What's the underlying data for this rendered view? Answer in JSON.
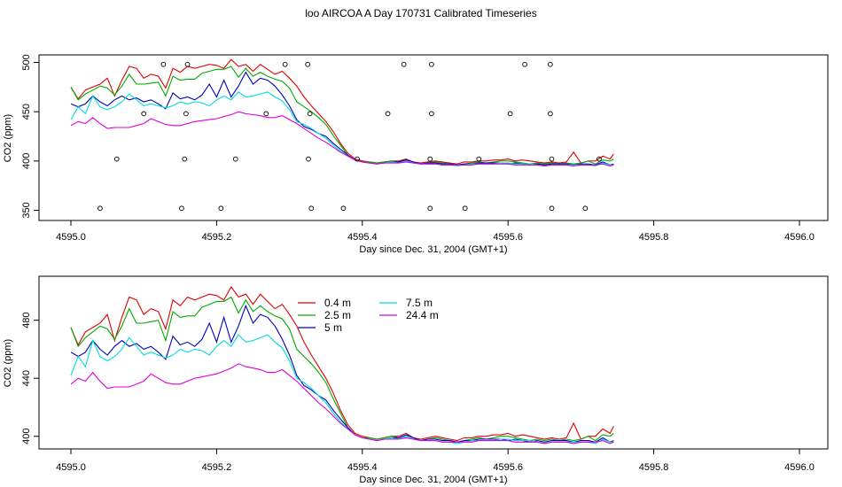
{
  "title": "loo AIRCOA A  Day 170731  Calibrated Timeseries",
  "series_names": [
    "0.4 m",
    "2.5 m",
    "5 m",
    "7.5 m",
    "24.4 m"
  ],
  "series_colors": [
    "#dd0000",
    "#00aa00",
    "#0000bb",
    "#00dddd",
    "#dd00dd"
  ],
  "t": [
    4595.0,
    4595.01,
    4595.02,
    4595.03,
    4595.04,
    4595.05,
    4595.06,
    4595.07,
    4595.08,
    4595.09,
    4595.1,
    4595.11,
    4595.12,
    4595.13,
    4595.14,
    4595.15,
    4595.16,
    4595.17,
    4595.18,
    4595.19,
    4595.2,
    4595.21,
    4595.22,
    4595.23,
    4595.24,
    4595.25,
    4595.26,
    4595.27,
    4595.28,
    4595.29,
    4595.3,
    4595.31,
    4595.32,
    4595.33,
    4595.34,
    4595.35,
    4595.36,
    4595.37,
    4595.38,
    4595.39,
    4595.4,
    4595.41,
    4595.42,
    4595.43,
    4595.44,
    4595.45,
    4595.46,
    4595.47,
    4595.48,
    4595.49,
    4595.5,
    4595.51,
    4595.52,
    4595.53,
    4595.54,
    4595.55,
    4595.56,
    4595.57,
    4595.58,
    4595.59,
    4595.6,
    4595.61,
    4595.62,
    4595.63,
    4595.64,
    4595.65,
    4595.66,
    4595.67,
    4595.68,
    4595.69,
    4595.7,
    4595.71,
    4595.72,
    4595.73,
    4595.74,
    4595.745
  ],
  "values": [
    [
      475,
      463,
      472,
      475,
      478,
      484,
      466,
      482,
      496,
      494,
      484,
      488,
      486,
      474,
      494,
      490,
      496,
      494,
      496,
      498,
      497,
      494,
      503,
      496,
      498,
      491,
      498,
      493,
      488,
      491,
      484,
      476,
      465,
      456,
      448,
      440,
      430,
      418,
      408,
      402,
      400,
      399,
      398,
      399,
      400,
      400,
      402,
      399,
      398,
      399,
      400,
      399,
      398,
      397,
      399,
      399,
      400,
      400,
      401,
      401,
      402,
      400,
      401,
      400,
      399,
      398,
      399,
      398,
      399,
      409,
      398,
      400,
      400,
      405,
      402,
      407
    ],
    [
      475,
      462,
      468,
      472,
      476,
      474,
      467,
      476,
      488,
      478,
      478,
      479,
      480,
      466,
      486,
      482,
      483,
      483,
      489,
      491,
      493,
      493,
      496,
      485,
      494,
      486,
      490,
      486,
      483,
      481,
      474,
      460,
      455,
      450,
      444,
      437,
      426,
      416,
      406,
      401,
      399,
      399,
      398,
      399,
      400,
      399,
      401,
      399,
      397,
      398,
      399,
      398,
      397,
      396,
      397,
      398,
      399,
      398,
      399,
      400,
      400,
      399,
      398,
      397,
      398,
      397,
      398,
      397,
      398,
      397,
      398,
      400,
      397,
      401,
      400,
      402
    ],
    [
      458,
      455,
      458,
      466,
      460,
      456,
      462,
      466,
      462,
      464,
      460,
      462,
      458,
      453,
      469,
      463,
      465,
      462,
      467,
      478,
      465,
      482,
      465,
      476,
      490,
      478,
      484,
      482,
      476,
      467,
      456,
      442,
      435,
      432,
      428,
      425,
      418,
      412,
      406,
      401,
      399,
      398,
      397,
      398,
      399,
      399,
      401,
      399,
      397,
      398,
      398,
      397,
      397,
      396,
      397,
      397,
      398,
      398,
      398,
      398,
      397,
      398,
      397,
      396,
      397,
      396,
      397,
      397,
      397,
      396,
      397,
      397,
      396,
      399,
      396,
      397
    ],
    [
      442,
      455,
      448,
      466,
      455,
      452,
      455,
      460,
      468,
      462,
      456,
      458,
      456,
      454,
      456,
      460,
      458,
      460,
      459,
      456,
      462,
      466,
      462,
      470,
      465,
      466,
      468,
      470,
      465,
      461,
      452,
      440,
      437,
      433,
      428,
      423,
      416,
      410,
      405,
      401,
      399,
      398,
      397,
      398,
      399,
      398,
      400,
      398,
      397,
      397,
      397,
      396,
      396,
      395,
      396,
      397,
      397,
      397,
      397,
      398,
      398,
      397,
      397,
      397,
      396,
      395,
      396,
      396,
      396,
      396,
      396,
      396,
      395,
      398,
      396,
      396
    ],
    [
      436,
      440,
      438,
      444,
      438,
      433,
      434,
      434,
      434,
      436,
      438,
      443,
      440,
      437,
      436,
      436,
      438,
      440,
      441,
      442,
      443,
      445,
      447,
      450,
      448,
      447,
      446,
      444,
      444,
      446,
      442,
      438,
      433,
      428,
      423,
      419,
      414,
      409,
      405,
      401,
      399,
      398,
      397,
      398,
      398,
      398,
      399,
      398,
      397,
      397,
      397,
      396,
      396,
      396,
      396,
      396,
      397,
      397,
      397,
      397,
      397,
      396,
      396,
      396,
      396,
      395,
      396,
      396,
      396,
      395,
      396,
      396,
      396,
      397,
      395,
      396
    ]
  ],
  "panel_top": {
    "ylabel": "CO2 (ppm)",
    "xlabel": "Day since Dec. 31, 2004 (GMT+1)",
    "xlim": [
      4595.0,
      4596.0
    ],
    "ylim": [
      350,
      500
    ],
    "yticks": [
      350,
      400,
      450,
      500
    ],
    "xticks": [
      "4595.0",
      "4595.2",
      "4595.4",
      "4595.6",
      "4595.8",
      "4596.0"
    ],
    "markers": [
      [
        4595.127,
        498
      ],
      [
        4595.16,
        498
      ],
      [
        4595.294,
        498
      ],
      [
        4595.325,
        498
      ],
      [
        4595.457,
        498
      ],
      [
        4595.495,
        498
      ],
      [
        4595.623,
        498
      ],
      [
        4595.658,
        498
      ],
      [
        4595.1,
        448
      ],
      [
        4595.158,
        448
      ],
      [
        4595.268,
        448
      ],
      [
        4595.328,
        448
      ],
      [
        4595.435,
        448
      ],
      [
        4595.495,
        448
      ],
      [
        4595.603,
        448
      ],
      [
        4595.658,
        448
      ],
      [
        4595.063,
        402
      ],
      [
        4595.156,
        402
      ],
      [
        4595.226,
        402
      ],
      [
        4595.326,
        402
      ],
      [
        4595.393,
        402
      ],
      [
        4595.493,
        402
      ],
      [
        4595.56,
        402
      ],
      [
        4595.66,
        402
      ],
      [
        4595.725,
        402
      ],
      [
        4595.04,
        352
      ],
      [
        4595.152,
        352
      ],
      [
        4595.206,
        352
      ],
      [
        4595.33,
        352
      ],
      [
        4595.374,
        352
      ],
      [
        4595.493,
        352
      ],
      [
        4595.541,
        352
      ],
      [
        4595.66,
        352
      ],
      [
        4595.706,
        352
      ]
    ]
  },
  "panel_bottom": {
    "ylabel": "CO2 (ppm)",
    "xlabel": "Day since Dec. 31, 2004 (GMT+1)",
    "xlim": [
      4595.0,
      4596.0
    ],
    "ylim": [
      392.5,
      508.5
    ],
    "yticks": [
      400,
      440,
      480
    ],
    "ytick_labels": [
      "400",
      "440",
      "480"
    ],
    "xticks": [
      "4595.0",
      "4595.2",
      "4595.4",
      "4595.6",
      "4595.8",
      "4596.0"
    ],
    "legend_position": "top-left inside plot"
  },
  "chart_data": {
    "type": "line",
    "title": "loo AIRCOA A  Day 170731  Calibrated Timeseries",
    "xlabel": "Day since Dec. 31, 2004 (GMT+1)",
    "ylabel": "CO2 (ppm)",
    "xlim": [
      4595.0,
      4596.0
    ],
    "ylim_top": [
      350,
      500
    ],
    "ylim_bottom": [
      392.5,
      508.5
    ],
    "legend": "top-left inside lower panel",
    "grid": false,
    "series_ref": "values (rows follow series_names, columns follow t)"
  }
}
